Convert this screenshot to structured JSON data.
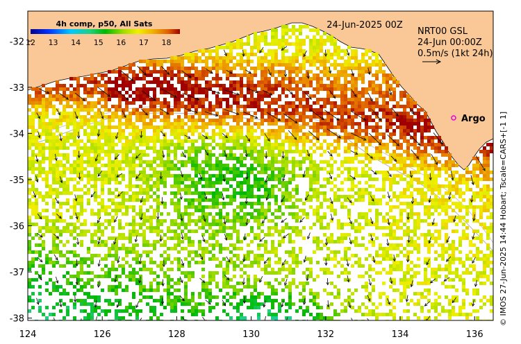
{
  "map": {
    "date_title": "24-Jun-2025 00Z",
    "info": {
      "line1": "NRT00 GSL",
      "line2": "24-Jun 00:00Z",
      "line3": "0.5m/s (1kt 24h)"
    },
    "argo_label": "Argo",
    "colorbar": {
      "title": "4h comp, p50, All Sats",
      "ticks": [
        "12",
        "13",
        "14",
        "15",
        "16",
        "17",
        "18"
      ],
      "min": 12,
      "max": 18.6
    },
    "x_ticks": [
      "124",
      "126",
      "128",
      "130",
      "132",
      "134",
      "136"
    ],
    "y_ticks": [
      "-32",
      "-33",
      "-34",
      "-35",
      "-36",
      "-37",
      "-38"
    ],
    "lon_range": [
      124,
      136.5
    ],
    "lat_range": [
      -38.05,
      -31.35
    ],
    "credit": "© IMOS 27-Jun-2025 14:44 Hobart; Tscale=CARS+[-1 1]",
    "colors": {
      "land": "#f9c896",
      "sea": "#ffffff",
      "argo_marker": "#e000e0"
    }
  }
}
